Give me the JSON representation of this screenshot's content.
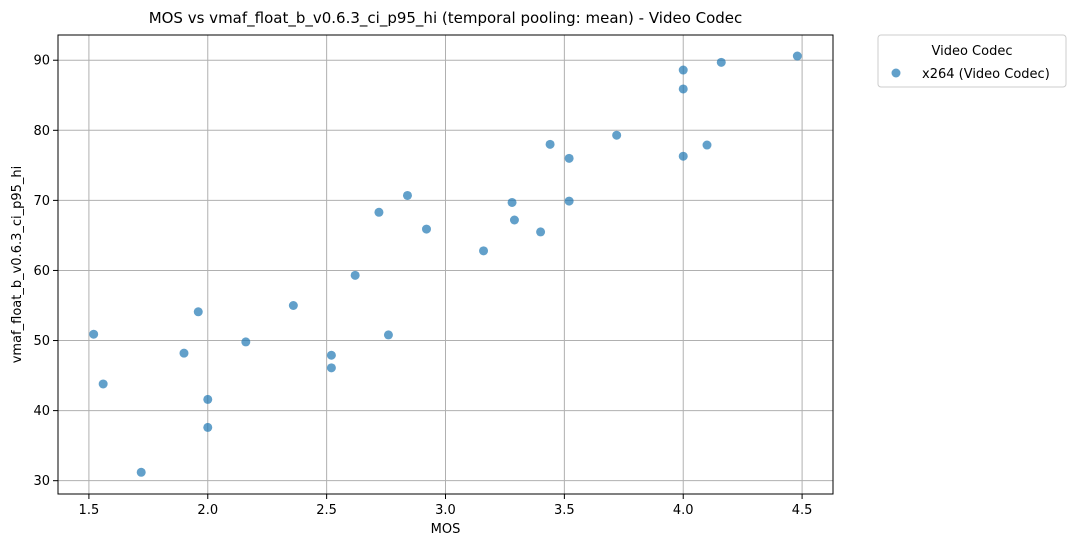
{
  "chart_data": {
    "type": "scatter",
    "title": "MOS vs vmaf_float_b_v0.6.3_ci_p95_hi (temporal pooling: mean) - Video Codec",
    "xlabel": "MOS",
    "ylabel": "vmaf_float_b_v0.6.3_ci_p95_hi",
    "xlim": [
      1.37,
      4.63
    ],
    "ylim": [
      28.1,
      93.6
    ],
    "xticks": [
      1.5,
      2.0,
      2.5,
      3.0,
      3.5,
      4.0,
      4.5
    ],
    "xtick_labels": [
      "1.5",
      "2.0",
      "2.5",
      "3.0",
      "3.5",
      "4.0",
      "4.5"
    ],
    "yticks": [
      30,
      40,
      50,
      60,
      70,
      80,
      90
    ],
    "ytick_labels": [
      "30",
      "40",
      "50",
      "60",
      "70",
      "80",
      "90"
    ],
    "grid": true,
    "legend": {
      "title": "Video Codec",
      "placement": "outside-top-right"
    },
    "colors": {
      "series": "#1f77b4"
    },
    "series": [
      {
        "name": "x264 (Video Codec)",
        "points": [
          [
            1.52,
            50.9
          ],
          [
            1.56,
            43.8
          ],
          [
            1.72,
            31.2
          ],
          [
            1.9,
            48.2
          ],
          [
            1.96,
            54.1
          ],
          [
            2.0,
            41.6
          ],
          [
            2.0,
            37.6
          ],
          [
            2.16,
            49.8
          ],
          [
            2.36,
            55.0
          ],
          [
            2.52,
            47.9
          ],
          [
            2.52,
            46.1
          ],
          [
            2.62,
            59.3
          ],
          [
            2.72,
            68.3
          ],
          [
            2.76,
            50.8
          ],
          [
            2.84,
            70.7
          ],
          [
            2.92,
            65.9
          ],
          [
            3.16,
            62.8
          ],
          [
            3.28,
            69.7
          ],
          [
            3.29,
            67.2
          ],
          [
            3.4,
            65.5
          ],
          [
            3.44,
            78.0
          ],
          [
            3.52,
            76.0
          ],
          [
            3.52,
            69.9
          ],
          [
            3.72,
            79.3
          ],
          [
            4.0,
            88.6
          ],
          [
            4.0,
            85.9
          ],
          [
            4.0,
            76.3
          ],
          [
            4.1,
            77.9
          ],
          [
            4.16,
            89.7
          ],
          [
            4.48,
            90.6
          ]
        ]
      }
    ]
  }
}
